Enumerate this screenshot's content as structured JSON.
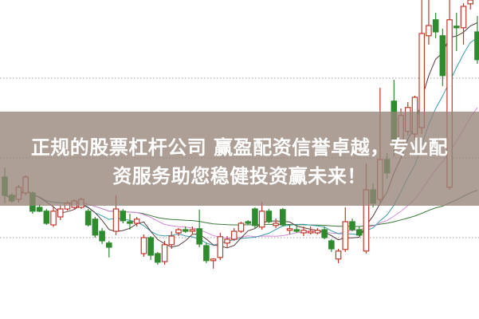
{
  "overlay": {
    "line1": "正规的股票杠杆公司 赢盈配资信誉卓越，专业配",
    "line2": "资服务助您稳健投资赢未来！"
  },
  "chart_data": {
    "type": "candlestick",
    "title": "",
    "xlabel": "",
    "ylabel": "",
    "grid": "dotted horizontal",
    "colors": {
      "up": "#c0392b",
      "down": "#2e8b2e",
      "ma5": "#5a3a3a",
      "ma10": "#3a9aa8",
      "ma20": "#d88ad8",
      "ma60": "#3a7a3a",
      "grid": "#999999"
    },
    "ohlc": [
      [
        44.5,
        47.5,
        36.3,
        38.8
      ],
      [
        38.8,
        39.5,
        36.5,
        37
      ],
      [
        37.5,
        42,
        36.5,
        41.3
      ],
      [
        39.5,
        45,
        38.8,
        44.5
      ],
      [
        39.5,
        40,
        33,
        33.8
      ],
      [
        35,
        36,
        33.5,
        33.8
      ],
      [
        33.8,
        34.5,
        29.5,
        30
      ],
      [
        29.5,
        35,
        28.8,
        33.8
      ],
      [
        32,
        35.5,
        31,
        34.5
      ],
      [
        34.5,
        37,
        34,
        36.3
      ],
      [
        35,
        37.5,
        34.5,
        37
      ],
      [
        35,
        38,
        34.5,
        37.5
      ],
      [
        33.8,
        34.5,
        29,
        29.5
      ],
      [
        31.3,
        32,
        25.5,
        26.3
      ],
      [
        27.5,
        28.5,
        23.5,
        24.5
      ],
      [
        23.8,
        24.5,
        19.3,
        22.5
      ],
      [
        27.5,
        38.8,
        26.3,
        34.5
      ],
      [
        33.8,
        34.5,
        30,
        30.8
      ],
      [
        30.5,
        33,
        28,
        30
      ],
      [
        30,
        32,
        29,
        31.3
      ],
      [
        20.5,
        26.5,
        19.5,
        25.5
      ],
      [
        25.5,
        26,
        18.5,
        20
      ],
      [
        20.5,
        21,
        17,
        17.8
      ],
      [
        18,
        24.5,
        17,
        23.3
      ],
      [
        23.3,
        27.5,
        22,
        26
      ],
      [
        27,
        28.5,
        26,
        28
      ],
      [
        28,
        29,
        27,
        27.5
      ],
      [
        27.5,
        29,
        26.5,
        28
      ],
      [
        28.3,
        34.3,
        22.5,
        23.5
      ],
      [
        23,
        24,
        17.5,
        18.3
      ],
      [
        18.3,
        19,
        15.8,
        18.8
      ],
      [
        19.3,
        27,
        18.5,
        25.8
      ],
      [
        23.8,
        26,
        22.5,
        25
      ],
      [
        25,
        28.5,
        24.5,
        27.5
      ],
      [
        27.5,
        30.5,
        27,
        30
      ],
      [
        30.5,
        31,
        29.5,
        30
      ],
      [
        34.5,
        35,
        28.5,
        29.3
      ],
      [
        28.8,
        36.8,
        28,
        33.8
      ],
      [
        33.8,
        34.5,
        30,
        30.5
      ],
      [
        29.3,
        31.5,
        28.5,
        30
      ],
      [
        34.3,
        34.8,
        29,
        29.5
      ],
      [
        27.8,
        29.5,
        26.5,
        28.3
      ],
      [
        28,
        29.5,
        27,
        27.5
      ],
      [
        27,
        29,
        26,
        27.8
      ],
      [
        27,
        29,
        26.5,
        27.5
      ],
      [
        27,
        28.5,
        26.5,
        27.8
      ],
      [
        28,
        29,
        25,
        25.5
      ],
      [
        24.5,
        25,
        21,
        22
      ],
      [
        18.8,
        22,
        17.5,
        21.3
      ],
      [
        21.8,
        35,
        21,
        30.5
      ],
      [
        30.5,
        31.5,
        27.5,
        28
      ],
      [
        28,
        29,
        26,
        26.3
      ],
      [
        21.3,
        48.8,
        20.5,
        40.5
      ],
      [
        40.5,
        42.5,
        35,
        36.3
      ],
      [
        37.5,
        72.5,
        36.5,
        50
      ],
      [
        50,
        52,
        44,
        45.8
      ],
      [
        68.3,
        75,
        51,
        56.3
      ],
      [
        55,
        66,
        53,
        63.8
      ],
      [
        58.8,
        68,
        57.5,
        66.3
      ],
      [
        58,
        70,
        56,
        69.5
      ],
      [
        60,
        100,
        58,
        89.5
      ],
      [
        88.8,
        100,
        86,
        92
      ],
      [
        93.8,
        96,
        88,
        90
      ],
      [
        88.8,
        91,
        73,
        76.3
      ],
      [
        41.3,
        100,
        40.5,
        93.8
      ],
      [
        91.8,
        96,
        84,
        91.3
      ],
      [
        91.3,
        99,
        86,
        98
      ],
      [
        98.8,
        100,
        97,
        100
      ],
      [
        90,
        95,
        80,
        81.3
      ]
    ]
  }
}
